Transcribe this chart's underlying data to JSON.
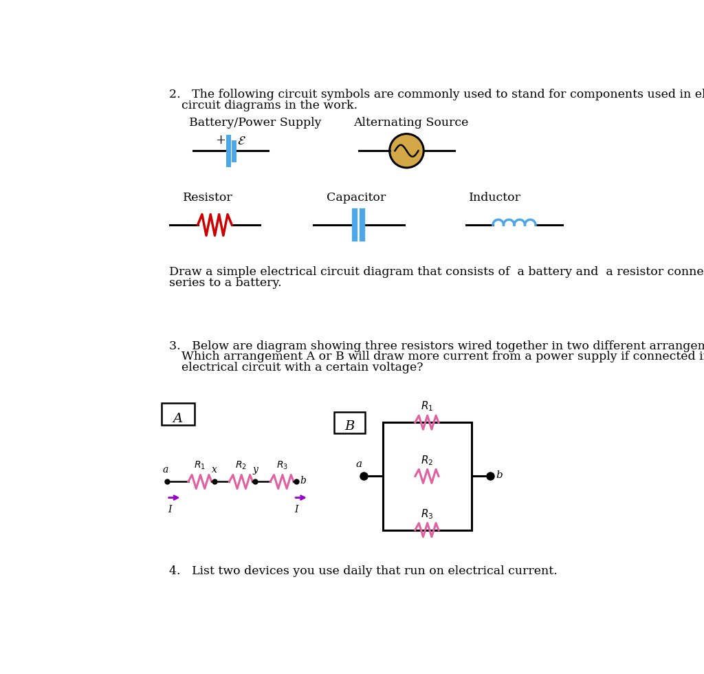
{
  "bg_color": "#ffffff",
  "text_color": "#000000",
  "battery_color": "#4da6e8",
  "resistor_color": "#cc0000",
  "capacitor_color": "#4da6e8",
  "inductor_color": "#4da6e8",
  "ac_circle_color": "#d4a847",
  "parallel_resistor_color": "#e060a0",
  "series_resistor_color": "#e060a0",
  "line_color": "#000000",
  "battery_label": "Battery/Power Supply",
  "ac_label": "Alternating Source",
  "resistor_label": "Resistor",
  "capacitor_label": "Capacitor",
  "inductor_label": "Inductor"
}
